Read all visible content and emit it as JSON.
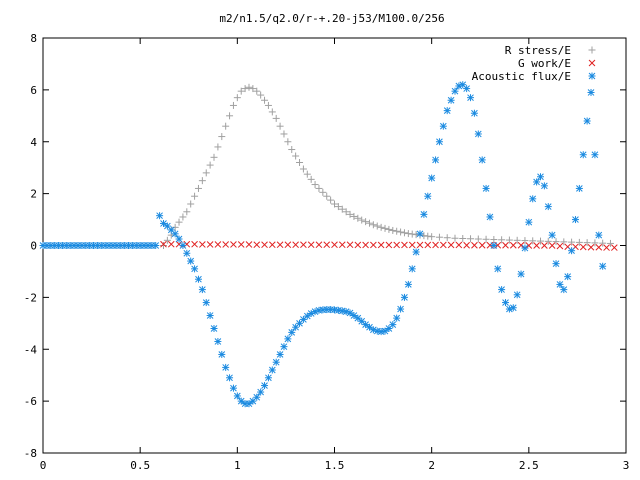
{
  "chart_data": {
    "type": "scatter",
    "title": "m2/n1.5/q2.0/r-+.20-j53/M100.0/256",
    "xlabel": "",
    "ylabel": "",
    "xlim": [
      0,
      3
    ],
    "ylim": [
      -8,
      8
    ],
    "x_ticks": [
      "0",
      "0.5",
      "1",
      "1.5",
      "2",
      "2.5",
      "3"
    ],
    "x_tick_values": [
      0,
      0.5,
      1,
      1.5,
      2,
      2.5,
      3
    ],
    "y_ticks": [
      "8",
      "6",
      "4",
      "2",
      "0",
      "-2",
      "-4",
      "-6",
      "-8"
    ],
    "y_tick_values": [
      8,
      6,
      4,
      2,
      0,
      -2,
      -4,
      -6,
      -8
    ],
    "grid": false,
    "legend_position": "top-right",
    "series": [
      {
        "name": "R stress/E",
        "marker": "plus",
        "color": "#a0a0a0",
        "points": [
          [
            0.62,
            0.0
          ],
          [
            0.64,
            0.2
          ],
          [
            0.66,
            0.4
          ],
          [
            0.68,
            0.7
          ],
          [
            0.7,
            0.9
          ],
          [
            0.72,
            1.1
          ],
          [
            0.74,
            1.3
          ],
          [
            0.76,
            1.6
          ],
          [
            0.78,
            1.9
          ],
          [
            0.8,
            2.2
          ],
          [
            0.82,
            2.5
          ],
          [
            0.84,
            2.8
          ],
          [
            0.86,
            3.1
          ],
          [
            0.88,
            3.4
          ],
          [
            0.9,
            3.8
          ],
          [
            0.92,
            4.2
          ],
          [
            0.94,
            4.6
          ],
          [
            0.96,
            5.0
          ],
          [
            0.98,
            5.4
          ],
          [
            1.0,
            5.7
          ],
          [
            1.02,
            5.95
          ],
          [
            1.04,
            6.05
          ],
          [
            1.06,
            6.1
          ],
          [
            1.08,
            6.05
          ],
          [
            1.1,
            5.95
          ],
          [
            1.12,
            5.8
          ],
          [
            1.14,
            5.6
          ],
          [
            1.16,
            5.4
          ],
          [
            1.18,
            5.15
          ],
          [
            1.2,
            4.9
          ],
          [
            1.22,
            4.6
          ],
          [
            1.24,
            4.3
          ],
          [
            1.26,
            4.0
          ],
          [
            1.28,
            3.7
          ],
          [
            1.3,
            3.45
          ],
          [
            1.32,
            3.2
          ],
          [
            1.34,
            2.95
          ],
          [
            1.36,
            2.75
          ],
          [
            1.38,
            2.55
          ],
          [
            1.4,
            2.35
          ],
          [
            1.42,
            2.2
          ],
          [
            1.44,
            2.05
          ],
          [
            1.46,
            1.9
          ],
          [
            1.48,
            1.75
          ],
          [
            1.5,
            1.6
          ],
          [
            1.52,
            1.5
          ],
          [
            1.54,
            1.4
          ],
          [
            1.56,
            1.3
          ],
          [
            1.58,
            1.2
          ],
          [
            1.6,
            1.12
          ],
          [
            1.62,
            1.05
          ],
          [
            1.64,
            0.98
          ],
          [
            1.66,
            0.92
          ],
          [
            1.68,
            0.86
          ],
          [
            1.7,
            0.8
          ],
          [
            1.72,
            0.75
          ],
          [
            1.74,
            0.7
          ],
          [
            1.76,
            0.66
          ],
          [
            1.78,
            0.62
          ],
          [
            1.8,
            0.58
          ],
          [
            1.82,
            0.55
          ],
          [
            1.84,
            0.52
          ],
          [
            1.86,
            0.49
          ],
          [
            1.88,
            0.46
          ],
          [
            1.9,
            0.44
          ],
          [
            1.92,
            0.42
          ],
          [
            1.94,
            0.4
          ],
          [
            1.96,
            0.38
          ],
          [
            1.98,
            0.36
          ],
          [
            2.0,
            0.34
          ],
          [
            2.04,
            0.32
          ],
          [
            2.08,
            0.3
          ],
          [
            2.12,
            0.28
          ],
          [
            2.16,
            0.27
          ],
          [
            2.2,
            0.26
          ],
          [
            2.24,
            0.25
          ],
          [
            2.28,
            0.24
          ],
          [
            2.32,
            0.23
          ],
          [
            2.36,
            0.22
          ],
          [
            2.4,
            0.21
          ],
          [
            2.44,
            0.2
          ],
          [
            2.48,
            0.19
          ],
          [
            2.52,
            0.18
          ],
          [
            2.56,
            0.17
          ],
          [
            2.6,
            0.16
          ],
          [
            2.64,
            0.15
          ],
          [
            2.68,
            0.14
          ],
          [
            2.72,
            0.13
          ],
          [
            2.76,
            0.12
          ],
          [
            2.8,
            0.11
          ],
          [
            2.84,
            0.1
          ],
          [
            2.88,
            0.09
          ],
          [
            2.92,
            0.08
          ]
        ]
      },
      {
        "name": "G work/E",
        "marker": "cross",
        "color": "#e02020",
        "points": [
          [
            0.62,
            0.05
          ],
          [
            0.66,
            0.05
          ],
          [
            0.7,
            0.05
          ],
          [
            0.74,
            0.05
          ],
          [
            0.78,
            0.05
          ],
          [
            0.82,
            0.04
          ],
          [
            0.86,
            0.04
          ],
          [
            0.9,
            0.04
          ],
          [
            0.94,
            0.04
          ],
          [
            0.98,
            0.04
          ],
          [
            1.02,
            0.04
          ],
          [
            1.06,
            0.04
          ],
          [
            1.1,
            0.03
          ],
          [
            1.14,
            0.03
          ],
          [
            1.18,
            0.03
          ],
          [
            1.22,
            0.03
          ],
          [
            1.26,
            0.03
          ],
          [
            1.3,
            0.03
          ],
          [
            1.34,
            0.03
          ],
          [
            1.38,
            0.03
          ],
          [
            1.42,
            0.03
          ],
          [
            1.46,
            0.03
          ],
          [
            1.5,
            0.03
          ],
          [
            1.54,
            0.03
          ],
          [
            1.58,
            0.03
          ],
          [
            1.62,
            0.02
          ],
          [
            1.66,
            0.02
          ],
          [
            1.7,
            0.02
          ],
          [
            1.74,
            0.02
          ],
          [
            1.78,
            0.02
          ],
          [
            1.82,
            0.02
          ],
          [
            1.86,
            0.02
          ],
          [
            1.9,
            0.02
          ],
          [
            1.94,
            0.02
          ],
          [
            1.98,
            0.02
          ],
          [
            2.02,
            0.02
          ],
          [
            2.06,
            0.02
          ],
          [
            2.1,
            0.02
          ],
          [
            2.14,
            0.02
          ],
          [
            2.18,
            0.01
          ],
          [
            2.22,
            0.01
          ],
          [
            2.26,
            0.01
          ],
          [
            2.3,
            0.01
          ],
          [
            2.34,
            0.01
          ],
          [
            2.38,
            0.01
          ],
          [
            2.42,
            0.01
          ],
          [
            2.46,
            0.01
          ],
          [
            2.5,
            0.0
          ],
          [
            2.54,
            0.0
          ],
          [
            2.58,
            0.0
          ],
          [
            2.62,
            0.0
          ],
          [
            2.66,
            -0.02
          ],
          [
            2.7,
            -0.05
          ],
          [
            2.74,
            -0.05
          ],
          [
            2.78,
            -0.06
          ],
          [
            2.82,
            -0.07
          ],
          [
            2.86,
            -0.07
          ],
          [
            2.9,
            -0.08
          ],
          [
            2.94,
            -0.08
          ]
        ]
      },
      {
        "name": "Acoustic flux/E",
        "marker": "asterisk",
        "color": "#1a8ae0",
        "points": [
          [
            0.0,
            0.0
          ],
          [
            0.02,
            0.0
          ],
          [
            0.04,
            0.0
          ],
          [
            0.06,
            0.0
          ],
          [
            0.08,
            0.0
          ],
          [
            0.1,
            0.0
          ],
          [
            0.12,
            0.0
          ],
          [
            0.14,
            0.0
          ],
          [
            0.16,
            0.0
          ],
          [
            0.18,
            0.0
          ],
          [
            0.2,
            0.0
          ],
          [
            0.22,
            0.0
          ],
          [
            0.24,
            0.0
          ],
          [
            0.26,
            0.0
          ],
          [
            0.28,
            0.0
          ],
          [
            0.3,
            0.0
          ],
          [
            0.32,
            0.0
          ],
          [
            0.34,
            0.0
          ],
          [
            0.36,
            0.0
          ],
          [
            0.38,
            0.0
          ],
          [
            0.4,
            0.0
          ],
          [
            0.42,
            0.0
          ],
          [
            0.44,
            0.0
          ],
          [
            0.46,
            0.0
          ],
          [
            0.48,
            0.0
          ],
          [
            0.5,
            0.0
          ],
          [
            0.52,
            0.0
          ],
          [
            0.54,
            0.0
          ],
          [
            0.56,
            0.0
          ],
          [
            0.58,
            0.0
          ],
          [
            0.6,
            1.15
          ],
          [
            0.62,
            0.85
          ],
          [
            0.64,
            0.75
          ],
          [
            0.66,
            0.6
          ],
          [
            0.68,
            0.45
          ],
          [
            0.7,
            0.25
          ],
          [
            0.72,
            0.0
          ],
          [
            0.74,
            -0.3
          ],
          [
            0.76,
            -0.6
          ],
          [
            0.78,
            -0.9
          ],
          [
            0.8,
            -1.3
          ],
          [
            0.82,
            -1.7
          ],
          [
            0.84,
            -2.2
          ],
          [
            0.86,
            -2.7
          ],
          [
            0.88,
            -3.2
          ],
          [
            0.9,
            -3.7
          ],
          [
            0.92,
            -4.2
          ],
          [
            0.94,
            -4.7
          ],
          [
            0.96,
            -5.1
          ],
          [
            0.98,
            -5.5
          ],
          [
            1.0,
            -5.8
          ],
          [
            1.02,
            -6.0
          ],
          [
            1.04,
            -6.1
          ],
          [
            1.06,
            -6.1
          ],
          [
            1.08,
            -6.0
          ],
          [
            1.1,
            -5.85
          ],
          [
            1.12,
            -5.65
          ],
          [
            1.14,
            -5.4
          ],
          [
            1.16,
            -5.1
          ],
          [
            1.18,
            -4.8
          ],
          [
            1.2,
            -4.5
          ],
          [
            1.22,
            -4.2
          ],
          [
            1.24,
            -3.9
          ],
          [
            1.26,
            -3.6
          ],
          [
            1.28,
            -3.35
          ],
          [
            1.3,
            -3.15
          ],
          [
            1.32,
            -3.0
          ],
          [
            1.34,
            -2.85
          ],
          [
            1.36,
            -2.72
          ],
          [
            1.38,
            -2.62
          ],
          [
            1.4,
            -2.55
          ],
          [
            1.42,
            -2.5
          ],
          [
            1.44,
            -2.48
          ],
          [
            1.46,
            -2.47
          ],
          [
            1.48,
            -2.47
          ],
          [
            1.5,
            -2.48
          ],
          [
            1.52,
            -2.5
          ],
          [
            1.54,
            -2.52
          ],
          [
            1.56,
            -2.55
          ],
          [
            1.58,
            -2.6
          ],
          [
            1.6,
            -2.7
          ],
          [
            1.62,
            -2.8
          ],
          [
            1.64,
            -2.92
          ],
          [
            1.66,
            -3.05
          ],
          [
            1.68,
            -3.15
          ],
          [
            1.7,
            -3.25
          ],
          [
            1.72,
            -3.3
          ],
          [
            1.74,
            -3.32
          ],
          [
            1.76,
            -3.3
          ],
          [
            1.78,
            -3.2
          ],
          [
            1.8,
            -3.05
          ],
          [
            1.82,
            -2.8
          ],
          [
            1.84,
            -2.45
          ],
          [
            1.86,
            -2.0
          ],
          [
            1.88,
            -1.5
          ],
          [
            1.9,
            -0.9
          ],
          [
            1.92,
            -0.25
          ],
          [
            1.94,
            0.45
          ],
          [
            1.96,
            1.2
          ],
          [
            1.98,
            1.9
          ],
          [
            2.0,
            2.6
          ],
          [
            2.02,
            3.3
          ],
          [
            2.04,
            4.0
          ],
          [
            2.06,
            4.6
          ],
          [
            2.08,
            5.2
          ],
          [
            2.1,
            5.6
          ],
          [
            2.12,
            5.95
          ],
          [
            2.14,
            6.15
          ],
          [
            2.16,
            6.2
          ],
          [
            2.18,
            6.05
          ],
          [
            2.2,
            5.7
          ],
          [
            2.22,
            5.1
          ],
          [
            2.24,
            4.3
          ],
          [
            2.26,
            3.3
          ],
          [
            2.28,
            2.2
          ],
          [
            2.3,
            1.1
          ],
          [
            2.32,
            0.0
          ],
          [
            2.34,
            -0.9
          ],
          [
            2.36,
            -1.7
          ],
          [
            2.38,
            -2.2
          ],
          [
            2.4,
            -2.45
          ],
          [
            2.42,
            -2.4
          ],
          [
            2.44,
            -1.9
          ],
          [
            2.46,
            -1.1
          ],
          [
            2.48,
            -0.1
          ],
          [
            2.5,
            0.9
          ],
          [
            2.52,
            1.8
          ],
          [
            2.54,
            2.45
          ],
          [
            2.56,
            2.65
          ],
          [
            2.58,
            2.3
          ],
          [
            2.6,
            1.5
          ],
          [
            2.62,
            0.4
          ],
          [
            2.64,
            -0.7
          ],
          [
            2.66,
            -1.5
          ],
          [
            2.68,
            -1.7
          ],
          [
            2.7,
            -1.2
          ],
          [
            2.72,
            -0.2
          ],
          [
            2.74,
            1.0
          ],
          [
            2.76,
            2.2
          ],
          [
            2.78,
            3.5
          ],
          [
            2.8,
            4.8
          ],
          [
            2.82,
            5.9
          ],
          [
            2.84,
            3.5
          ],
          [
            2.86,
            0.4
          ],
          [
            2.88,
            -0.8
          ]
        ]
      }
    ]
  }
}
